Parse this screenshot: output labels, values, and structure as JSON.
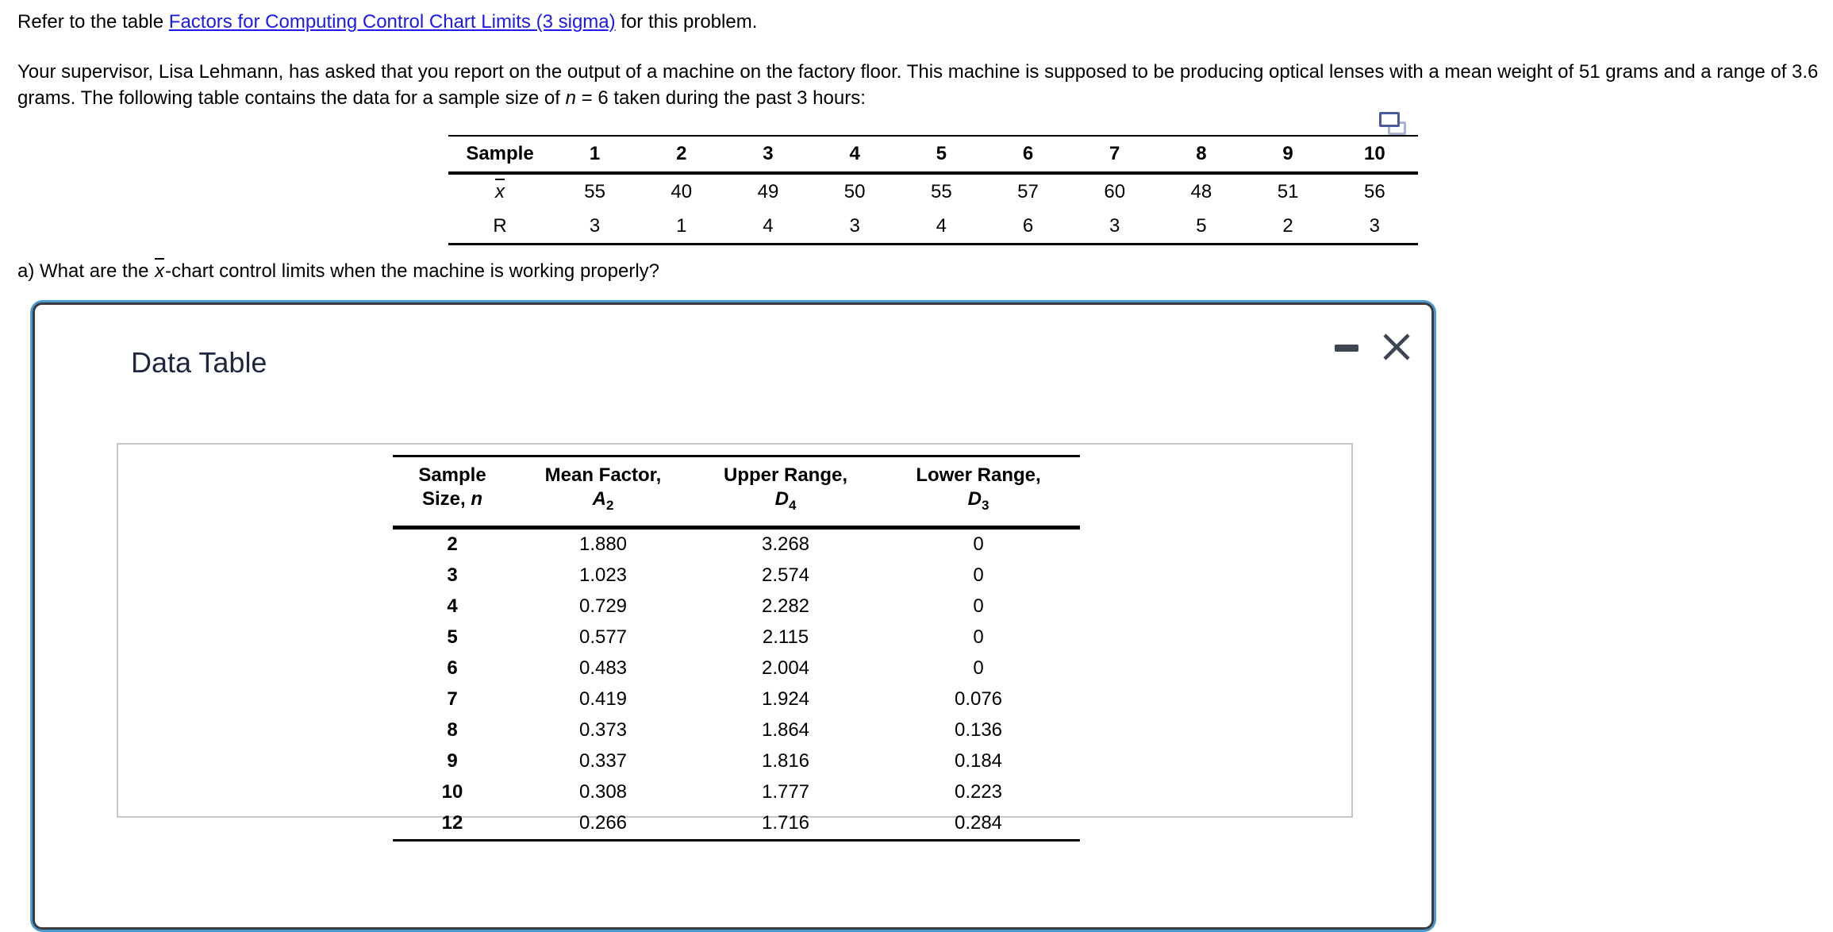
{
  "colors": {
    "link_blue": "#1a1af0",
    "modal_border_blue": "#4a9bd2",
    "modal_border_dark": "#3b3b3b",
    "title_navy": "#1c2740",
    "control_icon_slate": "#3f4653",
    "data_box_border_gray": "#c6c6c6",
    "copy_icon_front": "#4a5a9c",
    "copy_icon_back": "#aab4d6"
  },
  "intro": {
    "text_before_link": "Refer to the table ",
    "link_text": "Factors for Computing Control Chart Limits (3 sigma)",
    "text_after_link": " for this problem."
  },
  "problem_statement": {
    "text_before_n": "Your supervisor, Lisa Lehmann, has asked that you report on the output of a machine on the factory floor. This machine is supposed to be producing optical lenses with a mean weight of 51 grams and a range of 3.6 grams. The following table contains the data for a sample size of ",
    "n_symbol": "n",
    "n_value_text": " = 6",
    "text_after_n": " taken during the past 3 hours:"
  },
  "sample_table": {
    "corner_header": "Sample",
    "sample_numbers": [
      "1",
      "2",
      "3",
      "4",
      "5",
      "6",
      "7",
      "8",
      "9",
      "10"
    ],
    "mean_row_label": "x",
    "mean_values": [
      "55",
      "40",
      "49",
      "50",
      "55",
      "57",
      "60",
      "48",
      "51",
      "56"
    ],
    "range_row_label": "R",
    "range_values": [
      "3",
      "1",
      "4",
      "3",
      "4",
      "6",
      "3",
      "5",
      "2",
      "3"
    ]
  },
  "question_a": {
    "text_before_symbol": "a) What are the ",
    "symbol": "x",
    "text_after_symbol": "-chart control limits when the machine is working properly?"
  },
  "modal": {
    "title": "Data Table",
    "table": {
      "headers": [
        {
          "line1": "Sample",
          "line2_text": "Size, ",
          "line2_symbol": "n",
          "line2_sub": ""
        },
        {
          "line1": "Mean Factor,",
          "line2_text": "",
          "line2_symbol": "A",
          "line2_sub": "2"
        },
        {
          "line1": "Upper Range,",
          "line2_text": "",
          "line2_symbol": "D",
          "line2_sub": "4"
        },
        {
          "line1": "Lower Range,",
          "line2_text": "",
          "line2_symbol": "D",
          "line2_sub": "3"
        }
      ],
      "rows": [
        [
          "2",
          "1.880",
          "3.268",
          "0"
        ],
        [
          "3",
          "1.023",
          "2.574",
          "0"
        ],
        [
          "4",
          "0.729",
          "2.282",
          "0"
        ],
        [
          "5",
          "0.577",
          "2.115",
          "0"
        ],
        [
          "6",
          "0.483",
          "2.004",
          "0"
        ],
        [
          "7",
          "0.419",
          "1.924",
          "0.076"
        ],
        [
          "8",
          "0.373",
          "1.864",
          "0.136"
        ],
        [
          "9",
          "0.337",
          "1.816",
          "0.184"
        ],
        [
          "10",
          "0.308",
          "1.777",
          "0.223"
        ],
        [
          "12",
          "0.266",
          "1.716",
          "0.284"
        ]
      ]
    }
  },
  "icons": {
    "copy": "copy-icon",
    "minimize": "minimize-icon",
    "close": "close-icon"
  }
}
